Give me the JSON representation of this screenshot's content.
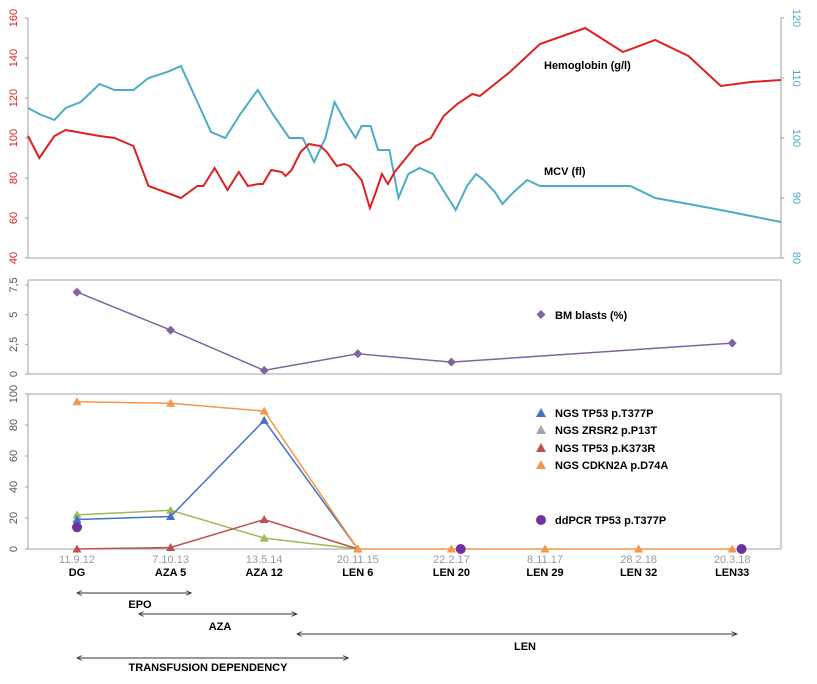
{
  "colors": {
    "hemoglobin": "#e02020",
    "mcv": "#4bacc6",
    "bm_blasts": "#8064a2",
    "tp53_t377p": "#4472c4",
    "zrsr2": "#a5a5a5",
    "tp53_k373r": "#c0504d",
    "cdkn2a": "#f79646",
    "green_series": "#9bbb59",
    "ddpcr": "#7030a0",
    "axis": "#a0a0a0",
    "grid": "#cccccc"
  },
  "chart_data": [
    {
      "type": "line",
      "panel": "top",
      "x_range": [
        0,
        1000
      ],
      "y_left": {
        "range": [
          40,
          160
        ],
        "ticks": [
          "40",
          "60",
          "80",
          "100",
          "120",
          "140",
          "160"
        ]
      },
      "y_right": {
        "range": [
          80,
          120
        ],
        "ticks": [
          "80",
          "90",
          "100",
          "110",
          "120"
        ]
      },
      "series": [
        {
          "name": "Hemoglobin (g/l)",
          "axis": "left",
          "x": [
            0,
            15,
            35,
            50,
            95,
            115,
            140,
            160,
            203,
            225,
            233,
            248,
            265,
            280,
            292,
            306,
            312,
            323,
            337,
            342,
            350,
            362,
            373,
            388,
            397,
            410,
            420,
            427,
            443,
            454,
            462,
            470,
            478,
            487,
            515,
            535,
            552,
            570,
            590,
            600,
            640,
            680,
            740,
            790,
            833,
            877,
            920,
            960,
            1000
          ],
          "values": [
            101,
            90,
            101,
            104,
            101,
            100,
            96,
            76,
            70,
            76,
            76,
            85,
            74,
            83,
            76,
            77,
            77,
            84,
            83,
            81,
            84,
            93,
            97,
            96,
            93,
            86,
            87,
            86,
            79,
            65,
            73,
            82,
            77,
            83,
            96,
            100,
            111,
            117,
            122,
            121,
            133,
            147,
            155,
            143,
            149,
            141,
            126,
            128,
            129
          ]
        },
        {
          "name": "MCV (fl)",
          "axis": "right",
          "x": [
            0,
            15,
            35,
            50,
            70,
            95,
            115,
            140,
            160,
            185,
            203,
            225,
            243,
            262,
            282,
            305,
            325,
            347,
            365,
            380,
            395,
            407,
            420,
            435,
            443,
            455,
            465,
            480,
            492,
            505,
            520,
            538,
            553,
            568,
            583,
            595,
            605,
            620,
            630,
            645,
            663,
            680,
            700,
            720,
            740,
            760,
            780,
            800,
            833,
            877,
            920,
            960,
            1000
          ],
          "values": [
            105,
            104,
            103,
            105,
            106,
            109,
            108,
            108,
            110,
            111,
            112,
            106,
            101,
            100,
            104,
            108,
            104,
            100,
            100,
            96,
            100,
            106,
            103,
            100,
            102,
            102,
            98,
            98,
            90,
            94,
            95,
            94,
            91,
            88,
            92,
            94,
            93,
            91,
            89,
            91,
            93,
            92,
            92,
            92,
            92,
            92,
            92,
            92,
            90,
            89,
            88,
            87,
            86
          ]
        }
      ],
      "annotations": [
        {
          "text": "Hemoglobin (g/l)",
          "series": "Hemoglobin (g/l)"
        },
        {
          "text": "MCV (fl)",
          "series": "MCV (fl)"
        }
      ]
    },
    {
      "type": "line",
      "panel": "middle",
      "y_range": [
        0,
        7.5
      ],
      "y_ticks": [
        "0",
        "2,5",
        "5",
        "7,5"
      ],
      "series": [
        {
          "name": "BM blasts (%)",
          "x": [
            0,
            1,
            2,
            3,
            4,
            7
          ],
          "values": [
            6.9,
            3.7,
            0.3,
            1.7,
            1.0,
            2.6
          ]
        }
      ]
    },
    {
      "type": "line",
      "panel": "bottom",
      "y_range": [
        0,
        100
      ],
      "y_ticks": [
        "0",
        "20",
        "40",
        "60",
        "80",
        "100"
      ],
      "categories": [
        "DG",
        "AZA 5",
        "AZA 12",
        "LEN 6",
        "LEN 20",
        "LEN 29",
        "LEN 32",
        "LEN33"
      ],
      "dates": [
        "11.9.12",
        "7.10.13",
        "13.5.14",
        "20.11.15",
        "22.2.17",
        "8.11.17",
        "28.2.18",
        "20.3.18"
      ],
      "series": [
        {
          "name": "NGS TP53 p.T377P",
          "x": [
            0,
            1,
            2,
            3
          ],
          "values": [
            19,
            21,
            83,
            0
          ]
        },
        {
          "name": "NGS ZRSR2 p.P13T",
          "x": [],
          "values": []
        },
        {
          "name": "NGS TP53 p.K373R",
          "x": [
            0,
            1,
            2,
            3
          ],
          "values": [
            0,
            1,
            19,
            0
          ]
        },
        {
          "name": "NGS CDKN2A p.D74A",
          "x": [
            0,
            1,
            2,
            3,
            4,
            5,
            6,
            7
          ],
          "values": [
            95,
            94,
            89,
            0,
            0,
            0,
            0,
            0
          ]
        },
        {
          "name": "",
          "x": [
            0,
            1,
            2,
            3
          ],
          "values": [
            22,
            25,
            7,
            0
          ]
        },
        {
          "name": "ddPCR TP53 p.T377P",
          "x": [
            0,
            4.1,
            7.1
          ],
          "values": [
            14,
            0,
            0
          ]
        }
      ]
    }
  ],
  "legend": {
    "bm_blasts": "BM blasts (%)",
    "tp53_t377p": "NGS TP53  p.T377P",
    "zrsr2": "NGS ZRSR2  p.P13T",
    "tp53_k373r": "NGS TP53 p.K373R",
    "cdkn2a": "NGS CDKN2A p.D74A",
    "ddpcr": "ddPCR  TP53 p.T377P"
  },
  "timeline": [
    {
      "label": "EPO",
      "start": 0,
      "end": 1.22
    },
    {
      "label": "AZA",
      "start": 0.66,
      "end": 2.35
    },
    {
      "label": "LEN",
      "start": 2.35,
      "end": 7.05
    },
    {
      "label": "TRANSFUSION  DEPENDENCY",
      "start": 0,
      "end": 2.9
    }
  ]
}
